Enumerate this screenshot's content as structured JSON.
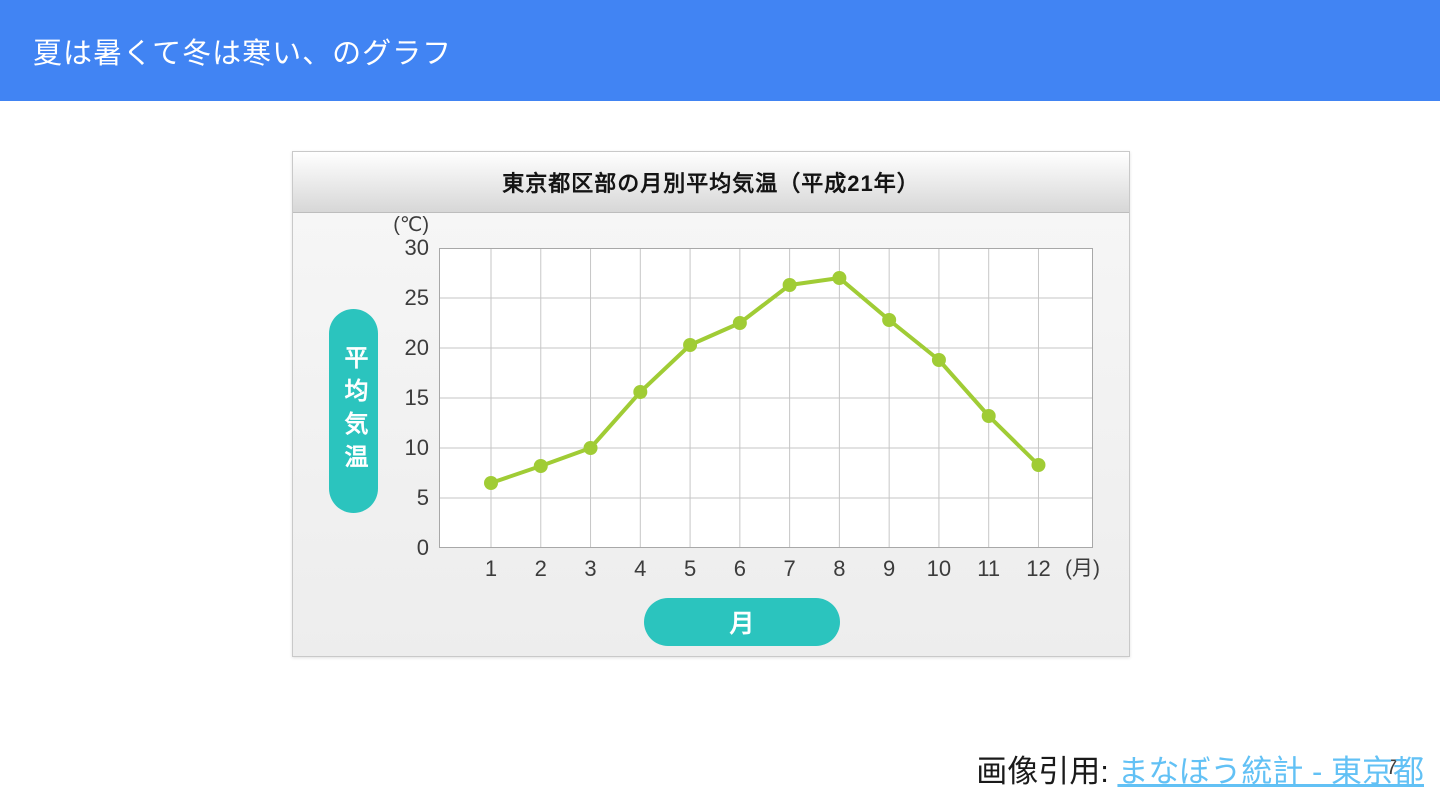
{
  "slide": {
    "header": {
      "title": "夏は暑くて冬は寒い、のグラフ",
      "background_color": "#4184f3"
    },
    "citation": {
      "prefix": "画像引用: ",
      "link_text": "まなぼう統計 - 東京都",
      "link_color": "#62c1f5"
    },
    "page_number": "7"
  },
  "chart_data": {
    "type": "line",
    "title": "東京都区部の月別平均気温（平成21年）",
    "x": [
      1,
      2,
      3,
      4,
      5,
      6,
      7,
      8,
      9,
      10,
      11,
      12
    ],
    "values": [
      6.5,
      8.2,
      10.0,
      15.6,
      20.3,
      22.5,
      26.3,
      27.0,
      22.8,
      18.8,
      13.2,
      8.3
    ],
    "xlabel": "月",
    "ylabel": "平均気温",
    "y_axis_unit": "(℃)",
    "x_axis_unit": "(月)",
    "ylim": [
      0,
      30
    ],
    "y_ticks": [
      0,
      5,
      10,
      15,
      20,
      25,
      30
    ],
    "grid": true,
    "legend": false,
    "marker": "circle",
    "line_color": "#a0cc35",
    "grid_color": "#c6c6c6",
    "plot_border_color": "#a8a8a8",
    "axis_pill_color": "#2bc4be"
  }
}
